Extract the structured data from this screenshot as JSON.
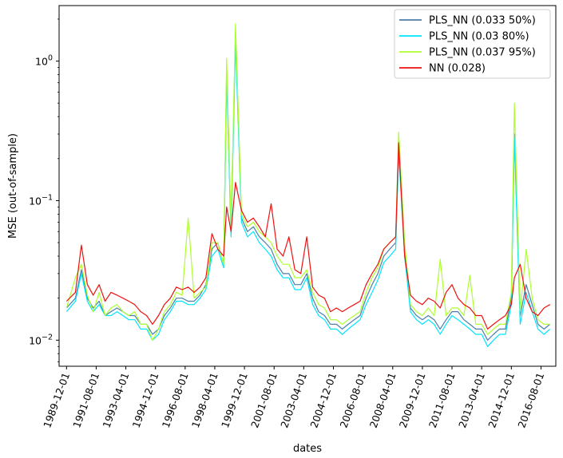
{
  "chart_data": {
    "type": "line",
    "title": "",
    "xlabel": "dates",
    "ylabel": "MSE (out-of-sample)",
    "y_scale": "log",
    "ylim": [
      0.0065,
      2.5
    ],
    "xlim": [
      "1989-07-01",
      "2017-06-01"
    ],
    "grid": false,
    "legend_position": "top-right",
    "x_ticks": [
      "1989-12-01",
      "1991-08-01",
      "1993-04-01",
      "1994-12-01",
      "1996-08-01",
      "1998-04-01",
      "1999-12-01",
      "2001-08-01",
      "2003-04-01",
      "2004-12-01",
      "2006-08-01",
      "2008-04-01",
      "2009-12-01",
      "2011-08-01",
      "2013-04-01",
      "2014-12-01",
      "2016-08-01"
    ],
    "y_ticks": [
      {
        "value": 0.01,
        "base": "10",
        "exp": "−2"
      },
      {
        "value": 0.1,
        "base": "10",
        "exp": "−1"
      },
      {
        "value": 1,
        "base": "10",
        "exp": "0"
      }
    ],
    "x": [
      "1989-12-01",
      "1990-06-01",
      "1990-10-01",
      "1991-02-01",
      "1991-06-01",
      "1991-10-01",
      "1992-02-01",
      "1992-06-01",
      "1992-10-01",
      "1993-02-01",
      "1993-06-01",
      "1993-10-01",
      "1994-02-01",
      "1994-06-01",
      "1994-10-01",
      "1995-02-01",
      "1995-06-01",
      "1995-10-01",
      "1996-02-01",
      "1996-06-01",
      "1996-10-01",
      "1997-02-01",
      "1997-06-01",
      "1997-10-01",
      "1998-02-01",
      "1998-06-01",
      "1998-10-01",
      "1998-12-01",
      "1999-03-01",
      "1999-06-01",
      "1999-10-01",
      "2000-02-01",
      "2000-06-01",
      "2000-10-01",
      "2001-02-01",
      "2001-06-01",
      "2001-10-01",
      "2002-02-01",
      "2002-06-01",
      "2002-10-01",
      "2003-02-01",
      "2003-06-01",
      "2003-10-01",
      "2004-02-01",
      "2004-06-01",
      "2004-10-01",
      "2005-02-01",
      "2005-06-01",
      "2005-10-01",
      "2006-02-01",
      "2006-06-01",
      "2006-10-01",
      "2007-02-01",
      "2007-06-01",
      "2007-10-01",
      "2008-02-01",
      "2008-06-01",
      "2008-08-01",
      "2008-12-01",
      "2009-04-01",
      "2009-08-01",
      "2009-12-01",
      "2010-04-01",
      "2010-08-01",
      "2010-12-01",
      "2011-04-01",
      "2011-08-01",
      "2011-12-01",
      "2012-04-01",
      "2012-08-01",
      "2012-12-01",
      "2013-04-01",
      "2013-08-01",
      "2013-12-01",
      "2014-04-01",
      "2014-08-01",
      "2014-12-01",
      "2015-02-01",
      "2015-06-01",
      "2015-10-01",
      "2016-02-01",
      "2016-06-01",
      "2016-10-01",
      "2017-02-01"
    ],
    "series": [
      {
        "name": "PLS_NN (0.033 50%)",
        "color": "#4d7ea8",
        "values": [
          0.017,
          0.02,
          0.032,
          0.02,
          0.017,
          0.019,
          0.015,
          0.016,
          0.017,
          0.016,
          0.015,
          0.015,
          0.013,
          0.013,
          0.011,
          0.012,
          0.015,
          0.017,
          0.02,
          0.02,
          0.019,
          0.019,
          0.021,
          0.025,
          0.045,
          0.05,
          0.035,
          0.9,
          0.06,
          1.6,
          0.075,
          0.06,
          0.065,
          0.055,
          0.05,
          0.045,
          0.035,
          0.03,
          0.03,
          0.025,
          0.025,
          0.03,
          0.02,
          0.016,
          0.015,
          0.013,
          0.013,
          0.012,
          0.013,
          0.014,
          0.015,
          0.02,
          0.025,
          0.03,
          0.04,
          0.045,
          0.05,
          0.25,
          0.045,
          0.017,
          0.015,
          0.014,
          0.015,
          0.014,
          0.012,
          0.014,
          0.016,
          0.016,
          0.014,
          0.013,
          0.012,
          0.012,
          0.01,
          0.011,
          0.012,
          0.012,
          0.02,
          0.3,
          0.015,
          0.025,
          0.018,
          0.013,
          0.012,
          0.013
        ]
      },
      {
        "name": "PLS_NN (0.03 80%)",
        "color": "#00e5ff",
        "values": [
          0.016,
          0.019,
          0.03,
          0.019,
          0.016,
          0.018,
          0.015,
          0.015,
          0.016,
          0.015,
          0.014,
          0.014,
          0.012,
          0.012,
          0.01,
          0.011,
          0.014,
          0.016,
          0.019,
          0.019,
          0.018,
          0.018,
          0.02,
          0.023,
          0.04,
          0.045,
          0.033,
          0.8,
          0.055,
          1.4,
          0.07,
          0.055,
          0.06,
          0.05,
          0.045,
          0.04,
          0.032,
          0.028,
          0.028,
          0.023,
          0.023,
          0.028,
          0.018,
          0.015,
          0.014,
          0.012,
          0.012,
          0.011,
          0.012,
          0.013,
          0.014,
          0.018,
          0.022,
          0.027,
          0.036,
          0.04,
          0.045,
          0.22,
          0.04,
          0.016,
          0.014,
          0.013,
          0.014,
          0.013,
          0.011,
          0.013,
          0.015,
          0.014,
          0.013,
          0.012,
          0.011,
          0.011,
          0.009,
          0.01,
          0.011,
          0.011,
          0.018,
          0.28,
          0.013,
          0.022,
          0.016,
          0.012,
          0.011,
          0.012
        ]
      },
      {
        "name": "PLS_NN (0.037 95%)",
        "color": "#adff2f",
        "values": [
          0.017,
          0.028,
          0.035,
          0.021,
          0.016,
          0.022,
          0.015,
          0.017,
          0.018,
          0.016,
          0.015,
          0.016,
          0.013,
          0.013,
          0.01,
          0.012,
          0.016,
          0.018,
          0.022,
          0.021,
          0.075,
          0.02,
          0.022,
          0.024,
          0.05,
          0.05,
          0.035,
          1.05,
          0.065,
          1.85,
          0.08,
          0.065,
          0.07,
          0.06,
          0.055,
          0.05,
          0.04,
          0.035,
          0.035,
          0.028,
          0.028,
          0.032,
          0.022,
          0.018,
          0.017,
          0.014,
          0.014,
          0.013,
          0.014,
          0.015,
          0.016,
          0.022,
          0.028,
          0.033,
          0.045,
          0.05,
          0.055,
          0.31,
          0.05,
          0.018,
          0.016,
          0.015,
          0.017,
          0.015,
          0.038,
          0.015,
          0.017,
          0.017,
          0.015,
          0.029,
          0.013,
          0.013,
          0.011,
          0.012,
          0.013,
          0.013,
          0.022,
          0.5,
          0.016,
          0.045,
          0.02,
          0.014,
          0.013,
          0.013
        ]
      },
      {
        "name": "NN (0.028)",
        "color": "#ee1111",
        "values": [
          0.019,
          0.022,
          0.048,
          0.025,
          0.021,
          0.025,
          0.019,
          0.022,
          0.021,
          0.02,
          0.019,
          0.018,
          0.016,
          0.015,
          0.013,
          0.015,
          0.018,
          0.02,
          0.024,
          0.023,
          0.024,
          0.022,
          0.024,
          0.028,
          0.058,
          0.045,
          0.04,
          0.09,
          0.06,
          0.135,
          0.085,
          0.07,
          0.075,
          0.065,
          0.055,
          0.095,
          0.045,
          0.04,
          0.055,
          0.032,
          0.03,
          0.055,
          0.024,
          0.021,
          0.02,
          0.016,
          0.017,
          0.016,
          0.017,
          0.018,
          0.019,
          0.025,
          0.03,
          0.035,
          0.045,
          0.05,
          0.055,
          0.26,
          0.04,
          0.021,
          0.019,
          0.018,
          0.02,
          0.019,
          0.017,
          0.022,
          0.025,
          0.02,
          0.018,
          0.017,
          0.015,
          0.015,
          0.012,
          0.013,
          0.014,
          0.015,
          0.018,
          0.028,
          0.035,
          0.02,
          0.016,
          0.015,
          0.017,
          0.018
        ]
      }
    ]
  }
}
